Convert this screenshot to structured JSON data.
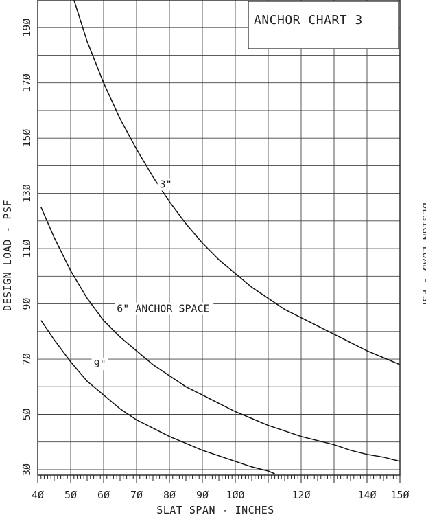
{
  "chart_data": {
    "type": "line",
    "title": "ANCHOR CHART 3",
    "xlabel": "SLAT SPAN - INCHES",
    "ylabel": "DESIGN LOAD - PSF",
    "right_edge_label": "DESIGN LOAD - PSF",
    "xlim": [
      40,
      150
    ],
    "ylim": [
      28,
      200
    ],
    "x_ticks": [
      {
        "v": 40,
        "label": "4Ø"
      },
      {
        "v": 50,
        "label": "5Ø"
      },
      {
        "v": 60,
        "label": "6Ø"
      },
      {
        "v": 70,
        "label": "7Ø"
      },
      {
        "v": 80,
        "label": "8Ø"
      },
      {
        "v": 90,
        "label": "9Ø"
      },
      {
        "v": 100,
        "label": "1ØØ"
      },
      {
        "v": 120,
        "label": "12Ø"
      },
      {
        "v": 140,
        "label": "14Ø"
      },
      {
        "v": 150,
        "label": "15Ø"
      }
    ],
    "y_ticks": [
      {
        "v": 30,
        "label": "3Ø"
      },
      {
        "v": 50,
        "label": "5Ø"
      },
      {
        "v": 70,
        "label": "7Ø"
      },
      {
        "v": 90,
        "label": "9Ø"
      },
      {
        "v": 110,
        "label": "11Ø"
      },
      {
        "v": 130,
        "label": "13Ø"
      },
      {
        "v": 150,
        "label": "15Ø"
      },
      {
        "v": 170,
        "label": "17Ø"
      },
      {
        "v": 190,
        "label": "19Ø"
      }
    ],
    "grid": true,
    "series": [
      {
        "name": "3\"",
        "label_at": [
          77,
          132
        ],
        "x": [
          51,
          55,
          60,
          65,
          70,
          75,
          80,
          85,
          90,
          95,
          100,
          105,
          110,
          115,
          120,
          125,
          130,
          135,
          140,
          145,
          150
        ],
        "y": [
          200,
          185,
          170,
          157,
          146,
          136,
          127,
          119,
          112,
          106,
          101,
          96,
          92,
          88,
          85,
          82,
          79,
          76,
          73,
          70.5,
          68
        ]
      },
      {
        "name": "6\" ANCHOR SPACE",
        "label_at": [
          64,
          87
        ],
        "x": [
          41,
          45,
          50,
          55,
          60,
          65,
          70,
          75,
          80,
          85,
          90,
          95,
          100,
          105,
          110,
          115,
          120,
          125,
          130,
          135,
          140,
          145,
          150
        ],
        "y": [
          125,
          114,
          102,
          92,
          84,
          78,
          73,
          68,
          64,
          60,
          57,
          54,
          51,
          48.5,
          46,
          44,
          42,
          40.5,
          39,
          37,
          35.5,
          34.5,
          33
        ]
      },
      {
        "name": "9\"",
        "label_at": [
          57,
          67
        ],
        "x": [
          41,
          45,
          50,
          55,
          60,
          65,
          70,
          75,
          80,
          85,
          90,
          95,
          100,
          105,
          110,
          112
        ],
        "y": [
          84,
          77,
          69,
          62,
          57,
          52,
          48,
          45,
          42,
          39.5,
          37,
          35,
          33,
          31,
          29.5,
          28.5
        ]
      }
    ]
  }
}
